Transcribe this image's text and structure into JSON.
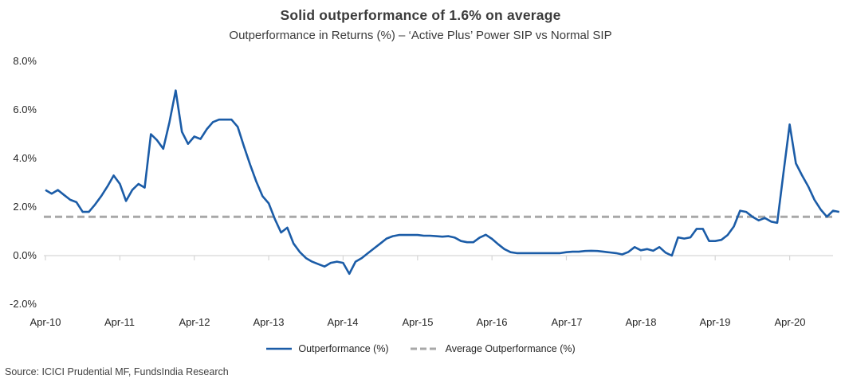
{
  "chart_data": {
    "type": "line",
    "title": "Solid outperformance of 1.6% on average",
    "subtitle": "Outperformance in Returns (%) – ‘Active Plus’ Power SIP vs Normal SIP",
    "x_tick_labels": [
      "Apr-10",
      "Apr-11",
      "Apr-12",
      "Apr-13",
      "Apr-14",
      "Apr-15",
      "Apr-16",
      "Apr-17",
      "Apr-18",
      "Apr-19",
      "Apr-20"
    ],
    "y_tick_labels": [
      "8.0%",
      "6.0%",
      "4.0%",
      "2.0%",
      "0.0%",
      "-2.0%"
    ],
    "ylim": [
      -2.0,
      8.0
    ],
    "y_unit": "percent",
    "x_frequency": "monthly",
    "x_start": "Apr-10",
    "x_end": "Dec-20",
    "grid": "none; only a light horizontal axis line at 0% with downward ticks at each April",
    "legend_position": "bottom-center",
    "average_value": 1.6,
    "average_series_name": "Average Outperformance (%)",
    "series": [
      {
        "name": "Outperformance (%)",
        "values": [
          2.7,
          2.55,
          2.7,
          2.5,
          2.3,
          2.2,
          1.8,
          1.8,
          2.1,
          2.45,
          2.85,
          3.3,
          2.95,
          2.25,
          2.7,
          2.95,
          2.8,
          5.0,
          4.75,
          4.4,
          5.5,
          6.8,
          5.1,
          4.6,
          4.9,
          4.8,
          5.2,
          5.5,
          5.6,
          5.6,
          5.6,
          5.3,
          4.5,
          3.75,
          3.05,
          2.45,
          2.15,
          1.5,
          0.95,
          1.15,
          0.5,
          0.15,
          -0.1,
          -0.25,
          -0.35,
          -0.45,
          -0.3,
          -0.25,
          -0.3,
          -0.75,
          -0.25,
          -0.1,
          0.1,
          0.3,
          0.5,
          0.7,
          0.8,
          0.85,
          0.85,
          0.85,
          0.85,
          0.82,
          0.82,
          0.8,
          0.78,
          0.8,
          0.74,
          0.6,
          0.55,
          0.55,
          0.74,
          0.86,
          0.69,
          0.47,
          0.27,
          0.14,
          0.1,
          0.1,
          0.1,
          0.1,
          0.1,
          0.1,
          0.1,
          0.1,
          0.14,
          0.16,
          0.16,
          0.19,
          0.2,
          0.19,
          0.16,
          0.13,
          0.1,
          0.05,
          0.15,
          0.35,
          0.22,
          0.27,
          0.2,
          0.35,
          0.12,
          0.0,
          0.75,
          0.7,
          0.75,
          1.1,
          1.1,
          0.6,
          0.6,
          0.65,
          0.85,
          1.2,
          1.85,
          1.8,
          1.6,
          1.45,
          1.55,
          1.4,
          1.35,
          3.4,
          5.4,
          3.8,
          3.3,
          2.85,
          2.3,
          1.9,
          1.6,
          1.85,
          1.8
        ]
      }
    ]
  },
  "legend": {
    "series_label": "Outperformance (%)",
    "average_label": "Average Outperformance (%)"
  },
  "source_note": "Source: ICICI Prudential MF, FundsIndia Research",
  "colors": {
    "line": "#1b5ca7",
    "average_line": "#a8a8a8",
    "axis": "#d6d6d6",
    "title_text": "#3b3b3b",
    "axis_text": "#262626"
  }
}
